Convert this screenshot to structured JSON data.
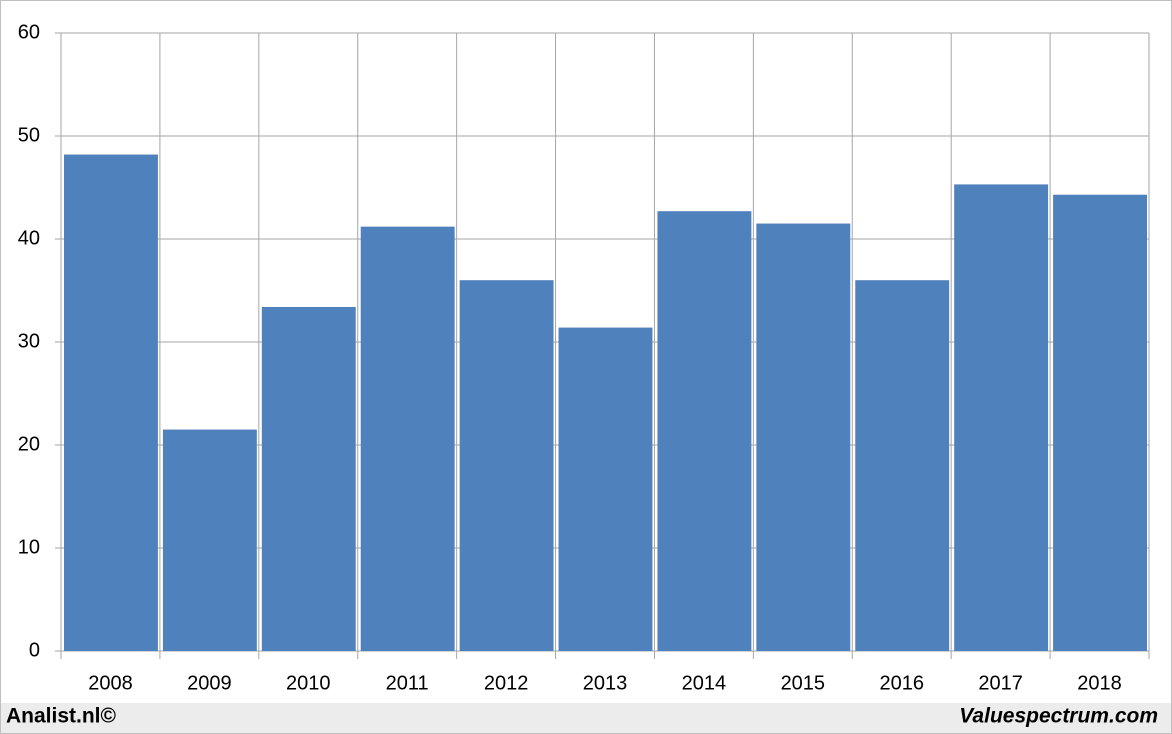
{
  "chart_data": {
    "type": "bar",
    "categories": [
      "2008",
      "2009",
      "2010",
      "2011",
      "2012",
      "2013",
      "2014",
      "2015",
      "2016",
      "2017",
      "2018"
    ],
    "values": [
      48.2,
      21.5,
      33.4,
      41.2,
      36.0,
      31.4,
      42.7,
      41.5,
      36.0,
      45.3,
      44.3
    ],
    "color": "#4f81bd",
    "ylim": [
      0,
      60
    ],
    "yticks": [
      0,
      10,
      20,
      30,
      40,
      50,
      60
    ],
    "grid": true,
    "annotations": [
      "Analist.nl©",
      "Valuespectrum.com"
    ]
  }
}
